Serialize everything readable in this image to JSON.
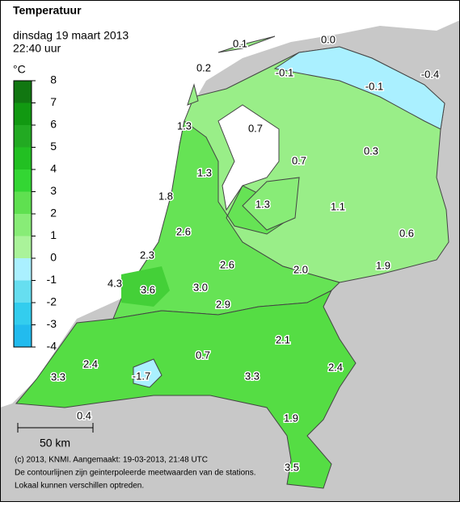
{
  "header": {
    "title": "Temperatuur",
    "date": "dinsdag 19 maart 2013",
    "time": "22:40 uur"
  },
  "legend": {
    "unit": "°C",
    "ticks": [
      8,
      7,
      6,
      5,
      4,
      3,
      2,
      1,
      0,
      -1,
      -2,
      -3,
      -4
    ],
    "colors": [
      "#117711",
      "#119911",
      "#22aa22",
      "#22c022",
      "#33d633",
      "#5fe050",
      "#88ec77",
      "#aaf39a",
      "#aaf0ff",
      "#66def0",
      "#33cdee",
      "#22bbee"
    ]
  },
  "stations": [
    "0.1",
    "0.0",
    "0.2",
    "-0.1",
    "-0.1",
    "-0.4",
    "1.3",
    "0.7",
    "0.3",
    "0.7",
    "1.3",
    "1.8",
    "1.3",
    "1.1",
    "0.6",
    "2.6",
    "2.3",
    "2.6",
    "1.9",
    "2.0",
    "4.3",
    "3.6",
    "3.0",
    "2.9",
    "2.1",
    "0.7",
    "2.4",
    "2.4",
    "-1.7",
    "3.3",
    "3.3",
    "0.4",
    "1.9",
    "3.5"
  ],
  "scale_bar": "50 km",
  "footer": [
    "(c) 2013, KNMI. Aangemaakt: 19-03-2013, 21:48 UTC",
    "De contourlijnen zijn geinterpoleerde meetwaarden van de stations.",
    "Lokaal kunnen verschillen optreden."
  ]
}
